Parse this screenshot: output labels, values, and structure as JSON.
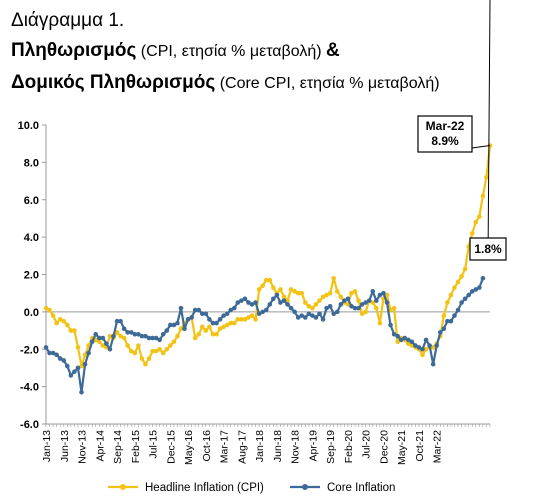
{
  "header": {
    "line1": "Διάγραμμα 1.",
    "line2_bold": "Πληθωρισμός",
    "line2_normal": " (CPI, ετησία % μεταβολή) ",
    "line2_amp": "&",
    "line3_bold": "Δομικός Πληθωρισμός",
    "line3_normal": " (Core CPI, ετησία % μεταβολή)"
  },
  "colors": {
    "headline": "#F2C314",
    "core": "#3E6A98",
    "axis": "#999999"
  },
  "chart_data": {
    "type": "line",
    "ylim": [
      -6,
      10
    ],
    "yticks": [
      "10.0",
      "8.0",
      "6.0",
      "4.0",
      "2.0",
      "0.0",
      "-2.0",
      "-4.0",
      "-6.0"
    ],
    "ytick_values": [
      10,
      8,
      6,
      4,
      2,
      0,
      -2,
      -4,
      -6
    ],
    "xtick_labels": [
      "Jan-13",
      "Jun-13",
      "Nov-13",
      "Apr-14",
      "Sep-14",
      "Feb-15",
      "Jul-15",
      "Dec-15",
      "May-16",
      "Oct-16",
      "Mar-17",
      "Aug-17",
      "Jan-18",
      "Jun-18",
      "Nov-18",
      "Apr-19",
      "Sep-19",
      "Feb-20",
      "Jul-20",
      "Dec-20",
      "May-21",
      "Oct-21",
      "Mar-22"
    ],
    "x_start": "Jan-13",
    "x_end": "Mar-22",
    "legend": [
      "Headline Inflation (CPI)",
      "Core Inflation"
    ],
    "legend_position": "bottom",
    "annotations": [
      {
        "series": "Headline Inflation (CPI)",
        "lines": [
          "Mar-22",
          "8.9%"
        ]
      },
      {
        "series": "Core Inflation",
        "lines": [
          "1.8%"
        ]
      }
    ],
    "series": [
      {
        "name": "Headline Inflation (CPI)",
        "values": [
          0.2,
          0.1,
          -0.2,
          -0.6,
          -0.4,
          -0.5,
          -0.7,
          -1.0,
          -1.0,
          -1.9,
          -2.9,
          -2.3,
          -1.8,
          -1.4,
          -1.5,
          -1.6,
          -1.8,
          -1.9,
          -1.3,
          -1.4,
          -1.1,
          -1.3,
          -1.4,
          -1.8,
          -2.1,
          -2.2,
          -1.8,
          -2.5,
          -2.8,
          -2.5,
          -2.1,
          -2.1,
          -2.0,
          -2.2,
          -2.0,
          -1.8,
          -1.6,
          -1.3,
          -0.9,
          -0.6,
          -0.4,
          -0.3,
          -1.4,
          -1.2,
          -0.8,
          -1.0,
          -0.8,
          -1.2,
          -1.2,
          -0.9,
          -0.8,
          -0.7,
          -0.6,
          -0.6,
          -0.4,
          -0.4,
          -0.4,
          -0.3,
          -0.2,
          -0.4,
          1.2,
          1.4,
          1.7,
          1.7,
          1.3,
          1.0,
          1.2,
          0.8,
          0.6,
          1.2,
          1.1,
          1.0,
          1.0,
          0.5,
          0.3,
          0.2,
          0.4,
          0.6,
          0.8,
          0.9,
          1.0,
          1.8,
          1.1,
          0.8,
          0.5,
          0.4,
          1.0,
          1.1,
          0.6,
          -0.1,
          0.0,
          0.6,
          0.5,
          0.2,
          -0.6,
          0.7,
          0.9,
          0.1,
          0.2,
          -1.6,
          -1.4,
          -1.5,
          -1.7,
          -1.8,
          -1.9,
          -2.0,
          -2.3,
          -2.0,
          -1.9,
          -1.9,
          -1.7,
          -1.3,
          -0.2,
          0.5,
          0.9,
          1.3,
          1.6,
          1.9,
          2.3,
          3.5,
          4.2,
          4.8,
          5.1,
          6.2,
          7.2,
          8.9
        ]
      },
      {
        "name": "Core Inflation",
        "values": [
          -1.9,
          -2.2,
          -2.2,
          -2.3,
          -2.5,
          -2.6,
          -2.9,
          -3.4,
          -3.2,
          -3.0,
          -4.3,
          -2.8,
          -2.2,
          -1.6,
          -1.2,
          -1.4,
          -1.4,
          -1.7,
          -2.0,
          -1.3,
          -0.5,
          -0.5,
          -0.9,
          -1.1,
          -1.1,
          -1.2,
          -1.2,
          -1.3,
          -1.3,
          -1.4,
          -1.4,
          -1.4,
          -1.5,
          -1.2,
          -1.0,
          -0.7,
          -0.7,
          -0.6,
          0.2,
          -0.9,
          -0.4,
          -0.3,
          0.1,
          0.1,
          -0.1,
          -0.1,
          -0.4,
          -0.6,
          -0.6,
          -0.4,
          -0.2,
          -0.1,
          0.1,
          0.2,
          0.5,
          0.6,
          0.7,
          0.5,
          0.4,
          0.5,
          -0.1,
          0.0,
          0.1,
          0.4,
          0.7,
          0.9,
          0.5,
          0.6,
          0.4,
          0.2,
          0.0,
          -0.3,
          -0.2,
          -0.3,
          -0.1,
          -0.2,
          -0.3,
          -0.1,
          -0.4,
          0.2,
          0.3,
          -0.1,
          0.0,
          0.4,
          0.6,
          0.7,
          0.3,
          0.2,
          0.2,
          0.4,
          0.5,
          0.6,
          1.1,
          0.6,
          0.9,
          1.0,
          0.5,
          -0.7,
          -1.2,
          -1.3,
          -1.5,
          -1.4,
          -1.5,
          -1.6,
          -1.8,
          -1.9,
          -2.0,
          -1.5,
          -1.8,
          -2.8,
          -1.8,
          -1.1,
          -0.9,
          -0.5,
          -0.5,
          -0.2,
          0.1,
          0.5,
          0.7,
          0.9,
          1.1,
          1.2,
          1.3,
          1.8
        ]
      }
    ]
  }
}
